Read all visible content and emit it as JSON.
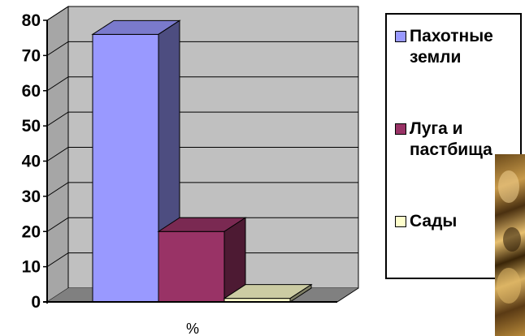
{
  "chart_data": {
    "type": "bar",
    "categories": [
      "%"
    ],
    "series": [
      {
        "name": "Пахотные земли",
        "values": [
          76
        ],
        "color": "#9999ff"
      },
      {
        "name": "Луга и пастбища",
        "values": [
          20
        ],
        "color": "#993366"
      },
      {
        "name": "Сады",
        "values": [
          1
        ],
        "color": "#ffffcc"
      }
    ],
    "xlabel": "%",
    "ylim": [
      0,
      80
    ],
    "yticks": [
      "0",
      "10",
      "20",
      "30",
      "40",
      "50",
      "60",
      "70",
      "80"
    ],
    "grid": true,
    "three_d": true,
    "legend_position": "right",
    "wall_color": "#c0c0c0",
    "floor_color": "#808080"
  },
  "legend": {
    "items": [
      {
        "label": "Пахотные земли",
        "color": "#9999ff"
      },
      {
        "label": "Луга и пастбища",
        "color": "#993366"
      },
      {
        "label": "Сады",
        "color": "#ffffcc"
      }
    ]
  }
}
